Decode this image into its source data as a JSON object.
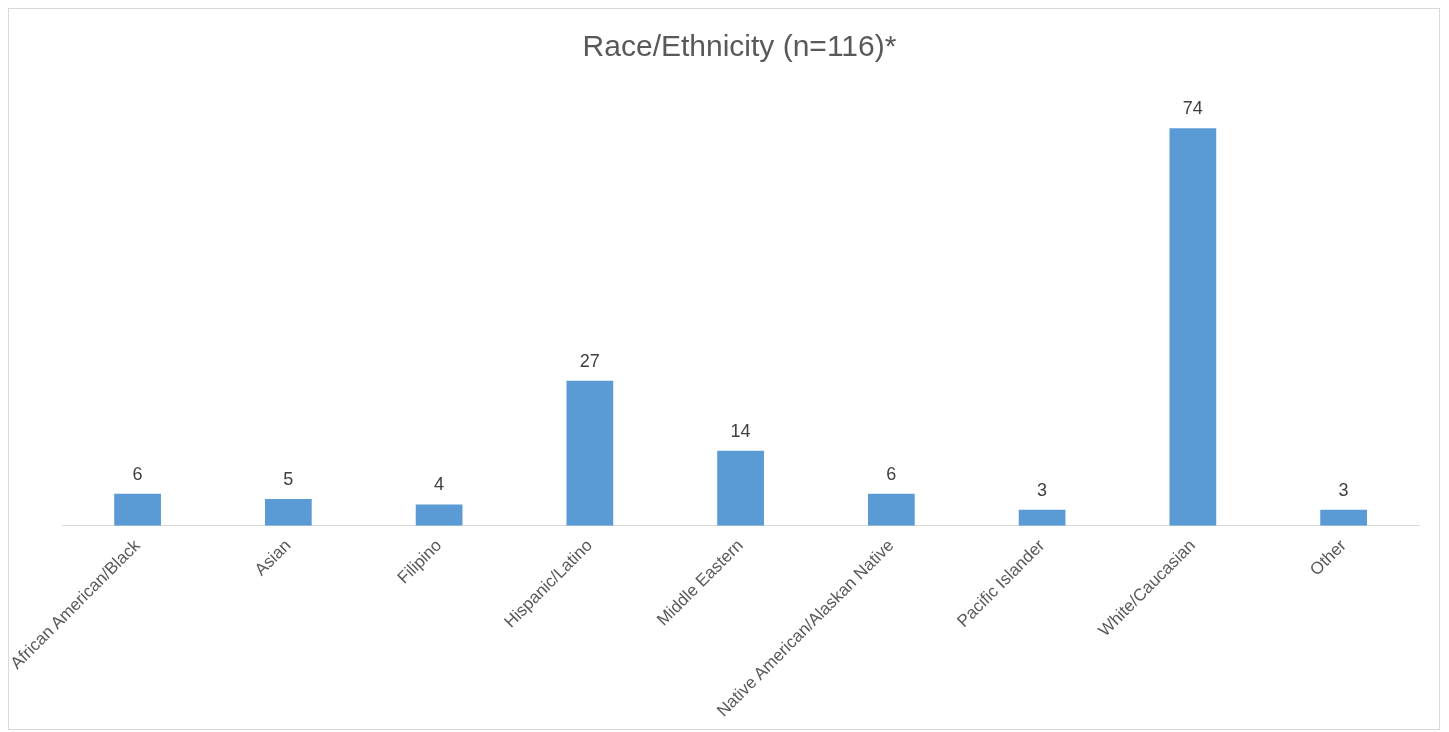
{
  "chart_data": {
    "type": "bar",
    "title": "Race/Ethnicity (n=116)*",
    "categories": [
      "African American/Black",
      "Asian",
      "Filipino",
      "Hispanic/Latino",
      "Middle Eastern",
      "Native American/Alaskan Native",
      "Pacific Islander",
      "White/Caucasian",
      "Other"
    ],
    "values": [
      6,
      5,
      4,
      27,
      14,
      6,
      3,
      74,
      3
    ],
    "color": "#5b9bd5",
    "data_labels": true,
    "grid": false,
    "legend": false
  }
}
